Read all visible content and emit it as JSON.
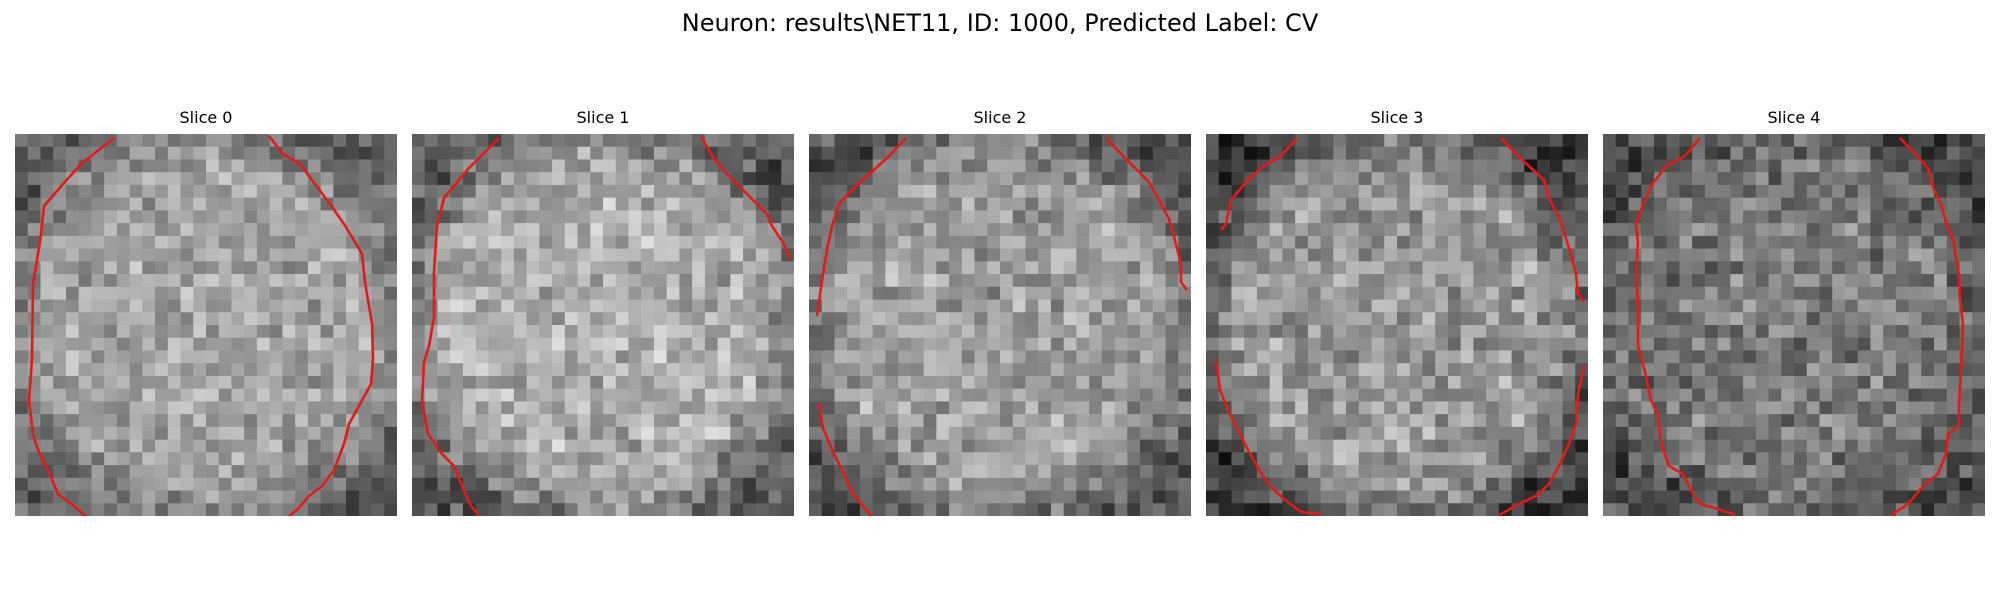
{
  "figure": {
    "title": "Neuron: results\\NET11, ID: 1000, Predicted Label: CV"
  },
  "colors": {
    "outline": "#e11a1a",
    "background": "#ffffff"
  },
  "slices": [
    {
      "title": "Slice 0",
      "brightness": 0.64,
      "contrast": 0.13,
      "edge_darkness": 0.26
    },
    {
      "title": "Slice 1",
      "brightness": 0.68,
      "contrast": 0.14,
      "edge_darkness": 0.34
    },
    {
      "title": "Slice 2",
      "brightness": 0.62,
      "contrast": 0.14,
      "edge_darkness": 0.3
    },
    {
      "title": "Slice 3",
      "brightness": 0.6,
      "contrast": 0.15,
      "edge_darkness": 0.38
    },
    {
      "title": "Slice 4",
      "brightness": 0.48,
      "contrast": 0.15,
      "edge_darkness": 0.2
    }
  ]
}
